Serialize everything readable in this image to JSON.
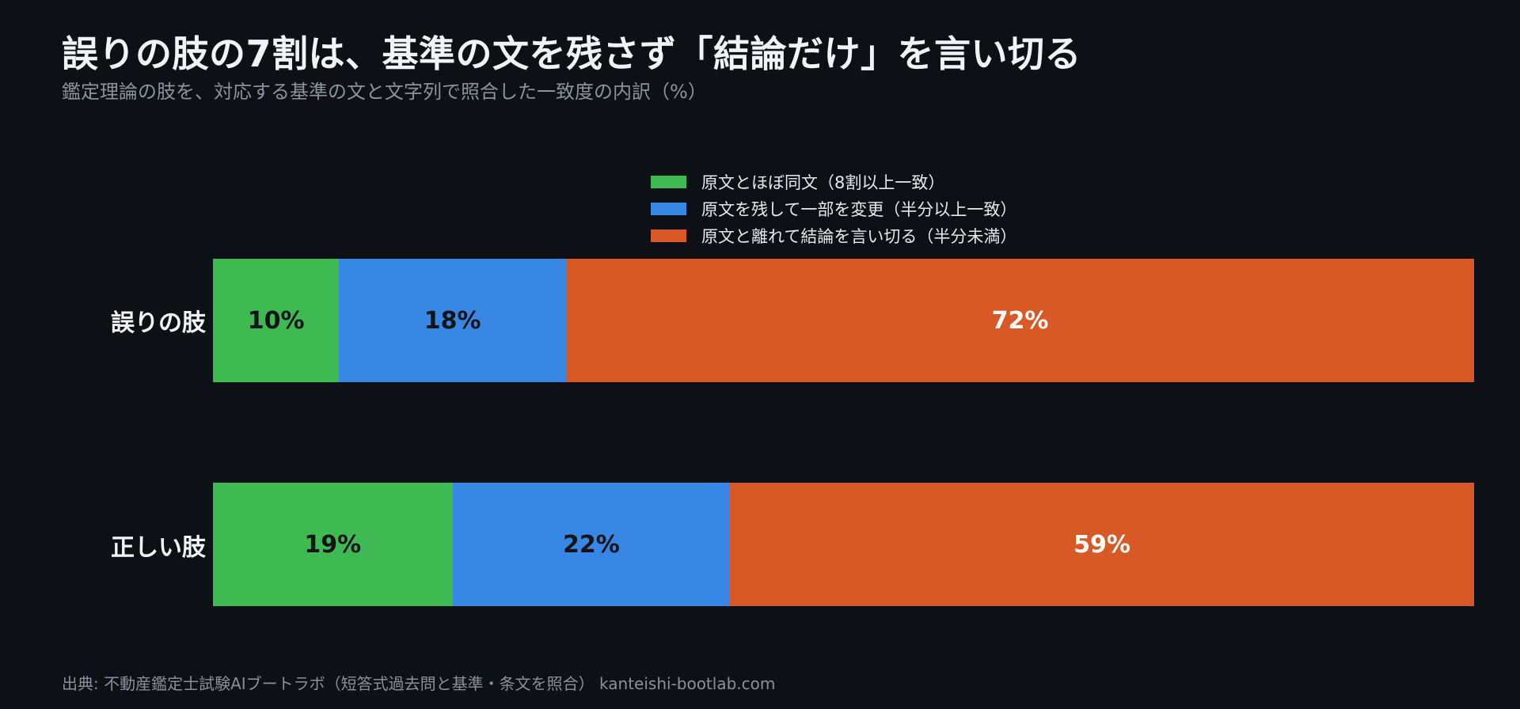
{
  "title": "誤りの肢の7割は、基準の文を残さず「結論だけ」を言い切る",
  "subtitle": "鑑定理論の肢を、対応する基準の文と文字列で照合した一致度の内訳（%）",
  "source": "出典: 不動産鑑定士試験AIブートラボ（短答式過去問と基準・条文を照合） kanteishi-bootlab.com",
  "colors": {
    "green": "#3fba52",
    "blue": "#3987e5",
    "orange": "#d95926",
    "dark_text": "#111418",
    "light_text": "#ffffff"
  },
  "chart_data": {
    "type": "bar",
    "orientation": "horizontal",
    "stacked": true,
    "normalized": true,
    "unit": "%",
    "categories": [
      "誤りの肢",
      "正しい肢"
    ],
    "series": [
      {
        "name": "原文とほぼ同文（8割以上一致）",
        "color": "#3fba52",
        "values": [
          10,
          19
        ],
        "labels": [
          "10%",
          "19%"
        ]
      },
      {
        "name": "原文を残して一部を変更（半分以上一致）",
        "color": "#3987e5",
        "values": [
          18,
          22
        ],
        "labels": [
          "18%",
          "22%"
        ]
      },
      {
        "name": "原文と離れて結論を言い切る（半分未満）",
        "color": "#d95926",
        "values": [
          72,
          59
        ],
        "labels": [
          "72%",
          "59%"
        ]
      }
    ],
    "xlim": [
      0,
      100
    ],
    "legend_position": "top-center",
    "grid": false
  }
}
